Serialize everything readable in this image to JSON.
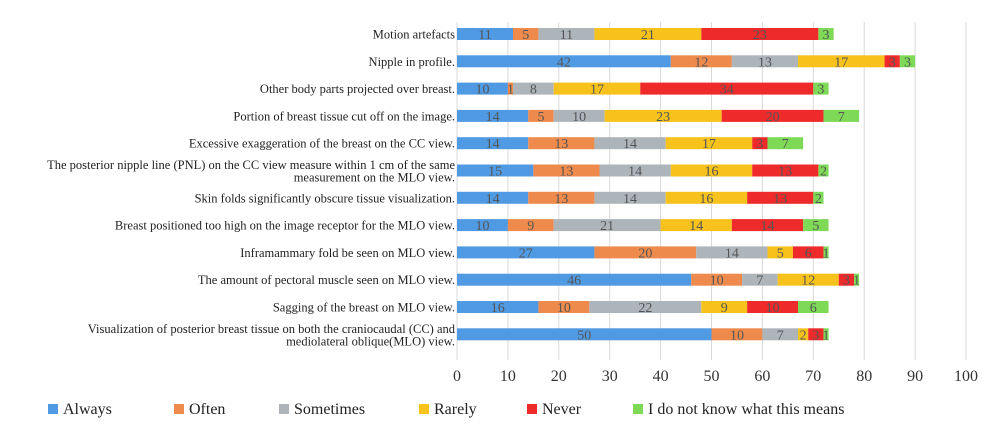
{
  "chart_data": {
    "type": "bar",
    "orientation": "horizontal",
    "stacked": true,
    "categories": [
      [
        "Motion artefacts"
      ],
      [
        "Nipple in profile."
      ],
      [
        "Other body parts projected over breast."
      ],
      [
        "Portion of breast tissue cut off on the image."
      ],
      [
        "Excessive exaggeration of the breast on the CC view."
      ],
      [
        "The posterior nipple line (PNL) on the CC view measure within 1 cm of the same",
        "measurement on the MLO view."
      ],
      [
        "Skin folds significantly obscure tissue visualization."
      ],
      [
        "Breast positioned too high on the image receptor for the MLO view."
      ],
      [
        "Inframammary fold be seen on MLO view."
      ],
      [
        "The amount of pectoral muscle seen on MLO view."
      ],
      [
        "Sagging of the breast on MLO view."
      ],
      [
        "Visualization of posterior breast tissue on both the craniocaudal (CC) and",
        "mediolateral oblique(MLO) view."
      ]
    ],
    "series": [
      {
        "name": "Always",
        "color": "#4f9ae3",
        "values": [
          11,
          42,
          10,
          14,
          14,
          15,
          14,
          10,
          27,
          46,
          16,
          50
        ]
      },
      {
        "name": "Often",
        "color": "#ed8a4c",
        "values": [
          5,
          12,
          1,
          5,
          13,
          13,
          13,
          9,
          20,
          10,
          10,
          10
        ]
      },
      {
        "name": "Sometimes",
        "color": "#adb5bb",
        "values": [
          11,
          13,
          8,
          10,
          14,
          14,
          14,
          21,
          14,
          7,
          22,
          7
        ]
      },
      {
        "name": "Rarely",
        "color": "#f7c21c",
        "values": [
          21,
          17,
          17,
          23,
          17,
          16,
          16,
          14,
          5,
          12,
          9,
          2
        ]
      },
      {
        "name": "Never",
        "color": "#ef2a2a",
        "values": [
          23,
          3,
          34,
          20,
          3,
          13,
          13,
          14,
          6,
          3,
          10,
          3
        ]
      },
      {
        "name": "I do not know what this means",
        "color": "#7ed957",
        "values": [
          3,
          3,
          3,
          7,
          7,
          2,
          2,
          5,
          1,
          1,
          6,
          1
        ]
      }
    ],
    "xlim": [
      0,
      100
    ],
    "xticks": [
      0,
      10,
      20,
      30,
      40,
      50,
      60,
      70,
      80,
      90,
      100
    ],
    "grid": true,
    "legend_position": "bottom"
  }
}
